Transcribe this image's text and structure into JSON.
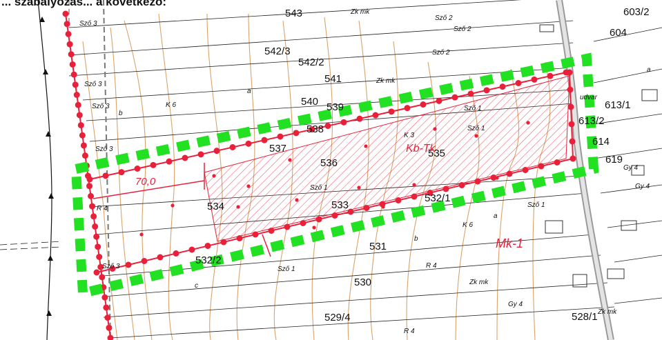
{
  "header_text": "... szabályozás... a következő:",
  "parcel_numbers": [
    "543",
    "542/3",
    "542/2",
    "541",
    "540",
    "539",
    "538",
    "537",
    "536",
    "535",
    "534",
    "533",
    "532/1",
    "532/2",
    "531",
    "530",
    "529/4",
    "528/1",
    "603/2",
    "604",
    "613/1",
    "613/2",
    "614",
    "619"
  ],
  "land_use_labels": [
    "Sző 3",
    "Sző 2",
    "Zk mk",
    "a",
    "b",
    "c",
    "K 6",
    "K 3",
    "Sző 1",
    "R 4",
    "Gy 4",
    "udvar"
  ],
  "zone_labels": {
    "kb": "Kb-Tk",
    "mk": "Mk-1"
  },
  "dimension_label": "70,0",
  "colors": {
    "zone_red": "#e8203a",
    "plan_green": "#22e022",
    "contour": "#d9a36a",
    "road": "#9a9a9a",
    "road_fill": "#e4e4e4",
    "hatch": "#e8203a"
  }
}
